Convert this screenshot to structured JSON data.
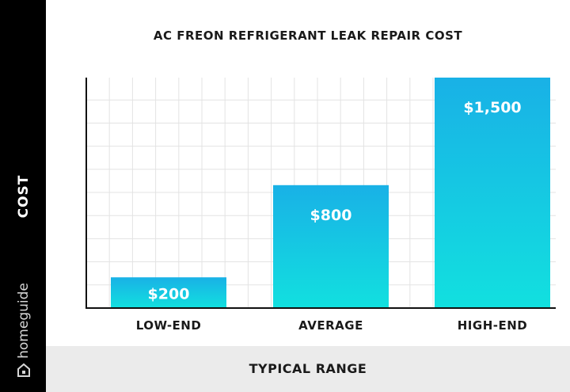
{
  "brand": "homeguide",
  "chart_data": {
    "type": "bar",
    "title": "AC FREON REFRIGERANT LEAK REPAIR COST",
    "xlabel": "TYPICAL RANGE",
    "ylabel": "COST",
    "categories": [
      "LOW-END",
      "AVERAGE",
      "HIGH-END"
    ],
    "values": [
      200,
      800,
      1500
    ],
    "value_labels": [
      "$200",
      "$800",
      "$1,500"
    ],
    "ylim": [
      0,
      1500
    ],
    "grid": true,
    "colors": {
      "bar_top": "#19b1e6",
      "bar_bottom": "#12e0df"
    }
  }
}
